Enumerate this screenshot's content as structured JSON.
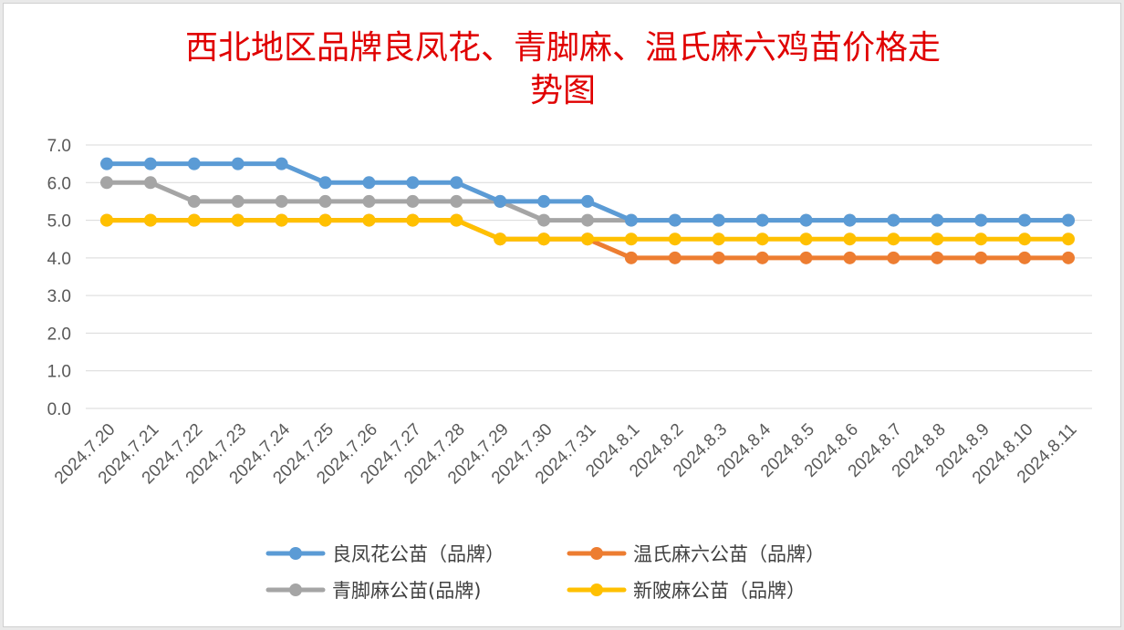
{
  "chart_data": {
    "type": "line",
    "title_lines": [
      "西北地区品牌良凤花、青脚麻、温氏麻六鸡苗价格走",
      "势图"
    ],
    "categories": [
      "2024.7.20",
      "2024.7.21",
      "2024.7.22",
      "2024.7.23",
      "2024.7.24",
      "2024.7.25",
      "2024.7.26",
      "2024.7.27",
      "2024.7.28",
      "2024.7.29",
      "2024.7.30",
      "2024.7.31",
      "2024.8.1",
      "2024.8.2",
      "2024.8.3",
      "2024.8.4",
      "2024.8.5",
      "2024.8.6",
      "2024.8.7",
      "2024.8.8",
      "2024.8.9",
      "2024.8.10",
      "2024.8.11"
    ],
    "ylim": [
      0,
      7
    ],
    "yticks": [
      "0.0",
      "1.0",
      "2.0",
      "3.0",
      "4.0",
      "5.0",
      "6.0",
      "7.0"
    ],
    "grid": true,
    "legend_position": "bottom",
    "series": [
      {
        "name": "良凤花公苗（品牌）",
        "color": "#5b9bd5",
        "values": [
          6.5,
          6.5,
          6.5,
          6.5,
          6.5,
          6.0,
          6.0,
          6.0,
          6.0,
          5.5,
          5.5,
          5.5,
          5.0,
          5.0,
          5.0,
          5.0,
          5.0,
          5.0,
          5.0,
          5.0,
          5.0,
          5.0,
          5.0
        ]
      },
      {
        "name": "温氏麻六公苗（品牌）",
        "color": "#ed7d31",
        "values": [
          5.0,
          5.0,
          5.0,
          5.0,
          5.0,
          5.0,
          5.0,
          5.0,
          5.0,
          4.5,
          4.5,
          4.5,
          4.0,
          4.0,
          4.0,
          4.0,
          4.0,
          4.0,
          4.0,
          4.0,
          4.0,
          4.0,
          4.0
        ]
      },
      {
        "name": "青脚麻公苗(品牌)",
        "color": "#a5a5a5",
        "values": [
          6.0,
          6.0,
          5.5,
          5.5,
          5.5,
          5.5,
          5.5,
          5.5,
          5.5,
          5.5,
          5.0,
          5.0,
          5.0,
          5.0,
          5.0,
          5.0,
          5.0,
          5.0,
          5.0,
          5.0,
          5.0,
          5.0,
          5.0
        ]
      },
      {
        "name": "新陂麻公苗（品牌）",
        "color": "#ffc000",
        "values": [
          5.0,
          5.0,
          5.0,
          5.0,
          5.0,
          5.0,
          5.0,
          5.0,
          5.0,
          4.5,
          4.5,
          4.5,
          4.5,
          4.5,
          4.5,
          4.5,
          4.5,
          4.5,
          4.5,
          4.5,
          4.5,
          4.5,
          4.5
        ]
      }
    ]
  }
}
